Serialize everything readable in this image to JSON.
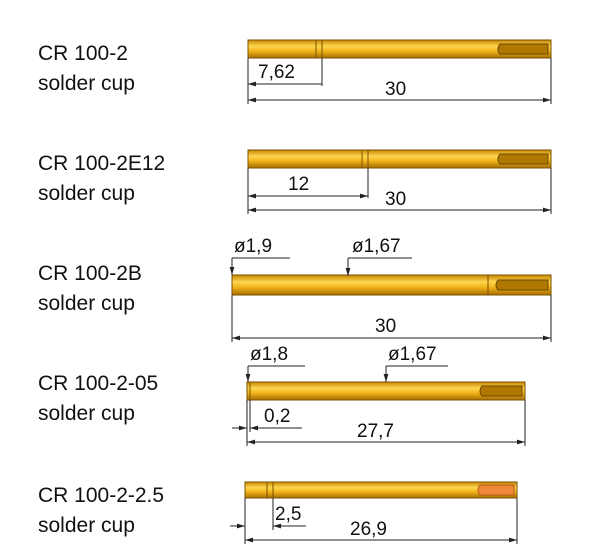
{
  "items": [
    {
      "name": "CR 100-2",
      "subtitle": "solder cup",
      "dims": [
        "7,62",
        "30"
      ]
    },
    {
      "name": "CR 100-2E12",
      "subtitle": "solder cup",
      "dims": [
        "12",
        "30"
      ]
    },
    {
      "name": "CR 100-2B",
      "subtitle": "solder cup",
      "dims": [
        "ø1,9",
        "ø1,67",
        "30"
      ]
    },
    {
      "name": "CR 100-2-05",
      "subtitle": "solder cup",
      "dims": [
        "ø1,8",
        "ø1,67",
        "0,2",
        "27,7"
      ]
    },
    {
      "name": "CR 100-2-2.5",
      "subtitle": "solder cup",
      "dims": [
        "2,5",
        "26,9"
      ]
    }
  ]
}
